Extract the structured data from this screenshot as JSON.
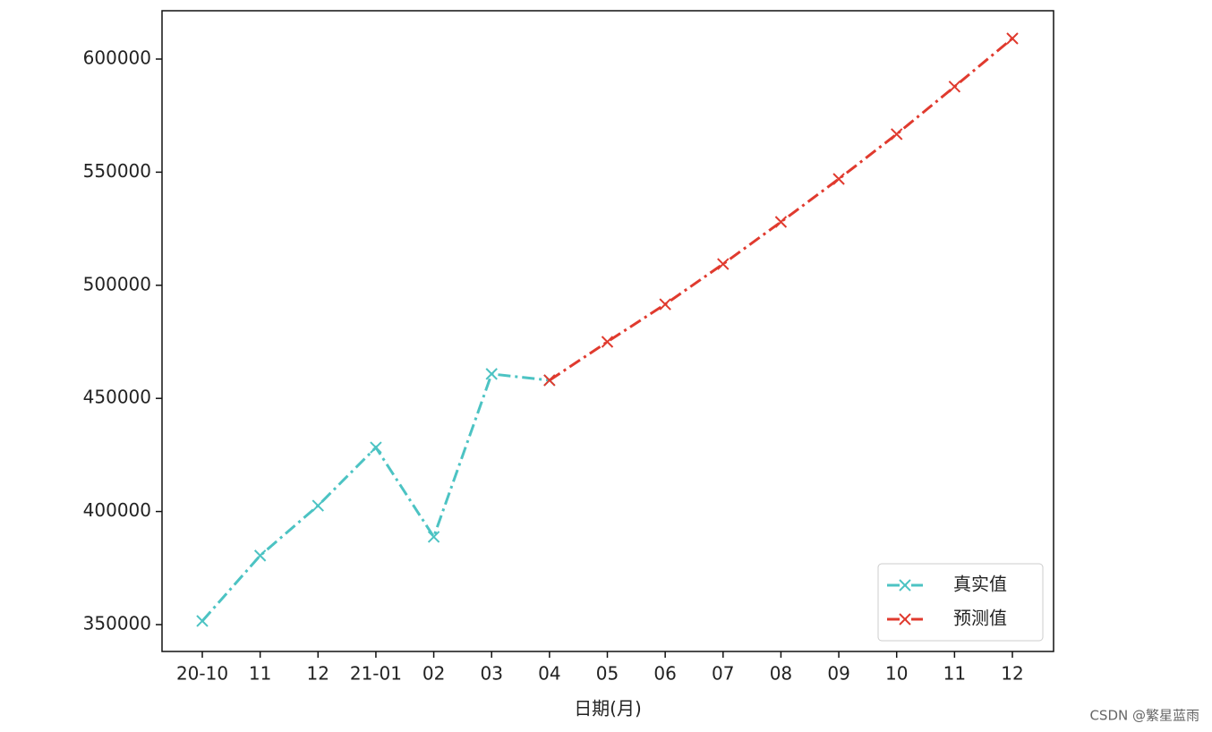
{
  "chart_data": {
    "type": "line",
    "xlabel": "日期(月)",
    "categories": [
      "20-10",
      "11",
      "12",
      "21-01",
      "02",
      "03",
      "04",
      "05",
      "06",
      "07",
      "08",
      "09",
      "10",
      "11",
      "12"
    ],
    "series": [
      {
        "name": "真实值",
        "color": "#4cc3c3",
        "values": [
          351600,
          380500,
          402600,
          428300,
          388800,
          460800,
          458000,
          null,
          null,
          null,
          null,
          null,
          null,
          null,
          null
        ]
      },
      {
        "name": "预测值",
        "color": "#e03a2e",
        "values": [
          null,
          null,
          null,
          null,
          null,
          null,
          458000,
          475000,
          491600,
          509400,
          528000,
          547000,
          566800,
          587800,
          609100
        ]
      }
    ],
    "ylim": [
      338130,
      621360
    ],
    "yticks": [
      350000,
      400000,
      450000,
      500000,
      550000,
      600000
    ],
    "legend": "lower right",
    "watermark": "CSDN @繁星蓝雨"
  }
}
